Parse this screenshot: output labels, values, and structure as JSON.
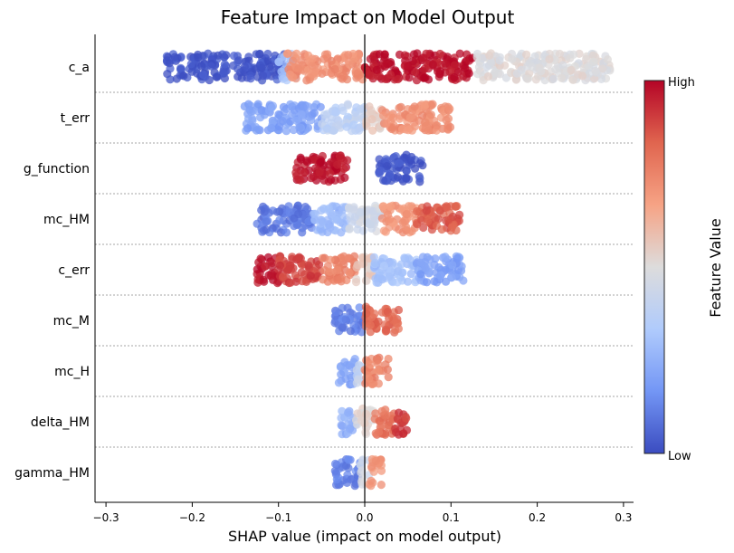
{
  "chart_data": {
    "type": "scatter",
    "subtype": "shap-beeswarm",
    "title": "Feature Impact on Model Output",
    "xlabel": "SHAP value (impact on model output)",
    "ylabel": "",
    "xlim": [
      -0.315,
      0.315
    ],
    "xticks": [
      -0.3,
      -0.2,
      -0.1,
      0.0,
      0.1,
      0.2,
      0.3
    ],
    "xtick_labels": [
      "−0.3",
      "−0.2",
      "−0.1",
      "0.0",
      "0.1",
      "0.2",
      "0.3"
    ],
    "zero_line": 0.0,
    "colorbar": {
      "label": "Feature Value",
      "high_label": "High",
      "low_label": "Low",
      "colormap": "coolwarm",
      "colors": [
        "#3b4cc0",
        "#7396f5",
        "#b0cbfc",
        "#dddcdc",
        "#f6a385",
        "#e0654f",
        "#b40426"
      ]
    },
    "features": [
      {
        "name": "c_a",
        "segments": [
          {
            "from": -0.23,
            "to": -0.09,
            "value": 0.02
          },
          {
            "from": -0.1,
            "to": -0.08,
            "value": 0.3
          },
          {
            "from": -0.09,
            "to": 0.0,
            "value": 0.72
          },
          {
            "from": 0.0,
            "to": 0.125,
            "value": 0.98
          },
          {
            "from": 0.13,
            "to": 0.285,
            "value": 0.5
          }
        ]
      },
      {
        "name": "t_err",
        "segments": [
          {
            "from": -0.14,
            "to": -0.05,
            "value": 0.2
          },
          {
            "from": -0.05,
            "to": 0.0,
            "value": 0.38
          },
          {
            "from": 0.0,
            "to": 0.02,
            "value": 0.55
          },
          {
            "from": 0.02,
            "to": 0.1,
            "value": 0.72
          }
        ]
      },
      {
        "name": "g_function",
        "segments": [
          {
            "from": -0.08,
            "to": -0.02,
            "value": 0.98
          },
          {
            "from": 0.015,
            "to": 0.07,
            "value": 0.02
          }
        ]
      },
      {
        "name": "mc_HM",
        "segments": [
          {
            "from": -0.125,
            "to": -0.06,
            "value": 0.1
          },
          {
            "from": -0.06,
            "to": -0.02,
            "value": 0.28
          },
          {
            "from": -0.02,
            "to": 0.02,
            "value": 0.45
          },
          {
            "from": 0.02,
            "to": 0.06,
            "value": 0.7
          },
          {
            "from": 0.06,
            "to": 0.11,
            "value": 0.85
          }
        ]
      },
      {
        "name": "c_err",
        "segments": [
          {
            "from": -0.125,
            "to": -0.1,
            "value": 0.98
          },
          {
            "from": -0.1,
            "to": -0.05,
            "value": 0.9
          },
          {
            "from": -0.05,
            "to": -0.01,
            "value": 0.75
          },
          {
            "from": -0.01,
            "to": 0.01,
            "value": 0.55
          },
          {
            "from": 0.01,
            "to": 0.06,
            "value": 0.3
          },
          {
            "from": 0.06,
            "to": 0.115,
            "value": 0.2
          }
        ]
      },
      {
        "name": "mc_M",
        "segments": [
          {
            "from": -0.035,
            "to": 0.0,
            "value": 0.12
          },
          {
            "from": 0.0,
            "to": 0.04,
            "value": 0.82
          }
        ]
      },
      {
        "name": "mc_H",
        "segments": [
          {
            "from": -0.03,
            "to": -0.01,
            "value": 0.22
          },
          {
            "from": -0.01,
            "to": 0.0,
            "value": 0.4
          },
          {
            "from": 0.0,
            "to": 0.028,
            "value": 0.75
          }
        ]
      },
      {
        "name": "delta_HM",
        "segments": [
          {
            "from": -0.028,
            "to": -0.01,
            "value": 0.25
          },
          {
            "from": -0.01,
            "to": 0.01,
            "value": 0.52
          },
          {
            "from": 0.01,
            "to": 0.035,
            "value": 0.8
          },
          {
            "from": 0.035,
            "to": 0.05,
            "value": 0.9
          }
        ]
      },
      {
        "name": "gamma_HM",
        "segments": [
          {
            "from": -0.035,
            "to": -0.005,
            "value": 0.12
          },
          {
            "from": -0.005,
            "to": 0.005,
            "value": 0.45
          },
          {
            "from": 0.005,
            "to": 0.02,
            "value": 0.7
          }
        ]
      }
    ]
  }
}
